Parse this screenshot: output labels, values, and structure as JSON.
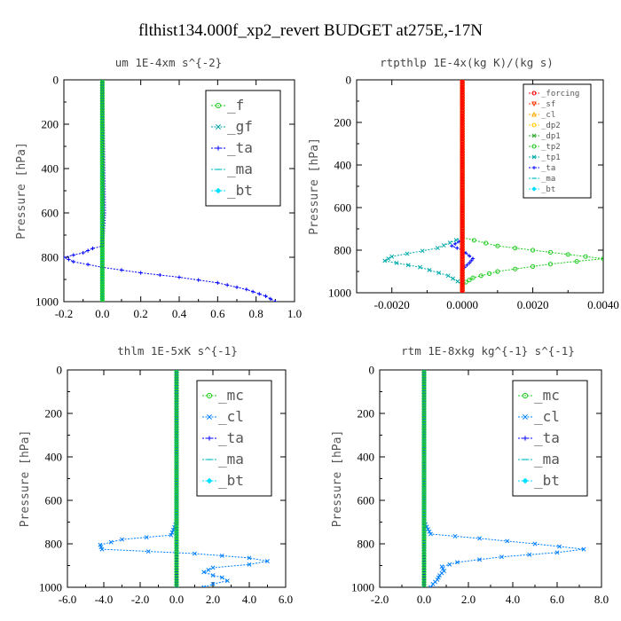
{
  "title": "flthist134.000f_xp2_revert  BUDGET at275E,-17N",
  "chart_data": [
    {
      "type": "line",
      "title": "um   1E-4xm s^{-2}",
      "xlabel": "",
      "ylabel": "Pressure [hPa]",
      "xlim": [
        -0.2,
        1.0
      ],
      "ylim": [
        1000,
        0
      ],
      "xticks": [
        -0.2,
        0.0,
        0.2,
        0.4,
        0.6,
        0.8,
        1.0
      ],
      "xtick_labels": [
        "-0.2",
        "0.0",
        "0.2",
        "0.4",
        "0.6",
        "0.8",
        "1.0"
      ],
      "yticks": [
        0,
        200,
        400,
        600,
        800,
        1000
      ],
      "ytick_labels": [
        "0",
        "200",
        "400",
        "600",
        "800",
        "1000"
      ],
      "legend": {
        "placement": "top-right",
        "size": "large"
      },
      "series": [
        {
          "name": "_f",
          "color": "#22cc22",
          "marker": "circle",
          "points": [
            [
              0,
              0
            ],
            [
              0,
              250
            ],
            [
              0,
              500
            ],
            [
              0,
              750
            ],
            [
              0,
              1000
            ]
          ]
        },
        {
          "name": "_gf",
          "color": "#00a0a0",
          "marker": "x",
          "points": [
            [
              0,
              0
            ],
            [
              0,
              250
            ],
            [
              0,
              500
            ],
            [
              0,
              750
            ],
            [
              0,
              1000
            ]
          ]
        },
        {
          "name": "_ta",
          "color": "#0000ff",
          "marker": "plus",
          "points": [
            [
              0,
              0
            ],
            [
              0.005,
              300
            ],
            [
              0.01,
              600
            ],
            [
              0,
              750
            ],
            [
              -0.05,
              760
            ],
            [
              -0.1,
              780
            ],
            [
              -0.2,
              800
            ],
            [
              -0.15,
              820
            ],
            [
              0,
              845
            ],
            [
              0.2,
              870
            ],
            [
              0.4,
              890
            ],
            [
              0.6,
              915
            ],
            [
              0.75,
              945
            ],
            [
              0.85,
              975
            ],
            [
              0.9,
              1000
            ]
          ]
        },
        {
          "name": "_ma",
          "color": "#00bfbf",
          "marker": "dash",
          "points": [
            [
              0,
              0
            ],
            [
              0,
              1000
            ]
          ]
        },
        {
          "name": "_bt",
          "color": "#00e0ff",
          "marker": "diamond",
          "points": [
            [
              0,
              0
            ],
            [
              0,
              1000
            ]
          ]
        }
      ]
    },
    {
      "type": "line",
      "title": "rtpthlp   1E-4x(kg K)/(kg s)",
      "xlabel": "",
      "ylabel": "Pressure [hPa]",
      "xlim": [
        -0.003,
        0.004
      ],
      "ylim": [
        1000,
        0
      ],
      "xticks": [
        -0.002,
        0.0,
        0.002,
        0.004
      ],
      "xtick_labels": [
        "-0.0020",
        "0.0000",
        "0.0020",
        "0.0040"
      ],
      "yticks": [
        0,
        200,
        400,
        600,
        800,
        1000
      ],
      "ytick_labels": [
        "0",
        "200",
        "400",
        "600",
        "800",
        "1000"
      ],
      "legend": {
        "placement": "top-right",
        "size": "small"
      },
      "series": [
        {
          "name": "_forcing",
          "color": "#ff0000",
          "marker": "circle",
          "points": [
            [
              0,
              0
            ],
            [
              0,
              1000
            ]
          ]
        },
        {
          "name": "_sf",
          "color": "#ff3300",
          "marker": "triangle-down",
          "points": [
            [
              0,
              0
            ],
            [
              0,
              1000
            ]
          ]
        },
        {
          "name": "_cl",
          "color": "#ffaa00",
          "marker": "triangle",
          "points": [
            [
              0,
              0
            ],
            [
              0,
              1000
            ]
          ]
        },
        {
          "name": "_dp2",
          "color": "#ffcc00",
          "marker": "circle",
          "points": [
            [
              0,
              0
            ],
            [
              0,
              1000
            ]
          ]
        },
        {
          "name": "_dp1",
          "color": "#33aa33",
          "marker": "x",
          "points": [
            [
              0,
              0
            ],
            [
              0,
              1000
            ]
          ]
        },
        {
          "name": "_tp2",
          "color": "#22cc22",
          "marker": "circle",
          "points": [
            [
              0,
              0
            ],
            [
              0,
              740
            ],
            [
              0.001,
              780
            ],
            [
              0.0025,
              810
            ],
            [
              0.004,
              840
            ],
            [
              0.0025,
              865
            ],
            [
              0.001,
              900
            ],
            [
              0.0003,
              930
            ],
            [
              0,
              960
            ],
            [
              0,
              1000
            ]
          ]
        },
        {
          "name": "_tp1",
          "color": "#00aaaa",
          "marker": "x",
          "points": [
            [
              0,
              0
            ],
            [
              0,
              740
            ],
            [
              -0.0007,
              790
            ],
            [
              -0.002,
              830
            ],
            [
              -0.0022,
              850
            ],
            [
              -0.0012,
              880
            ],
            [
              -0.0004,
              920
            ],
            [
              0,
              960
            ],
            [
              0,
              1000
            ]
          ]
        },
        {
          "name": "_ta",
          "color": "#0000ff",
          "marker": "plus",
          "points": [
            [
              0,
              0
            ],
            [
              0,
              750
            ],
            [
              -0.0003,
              780
            ],
            [
              0,
              800
            ],
            [
              0.0003,
              840
            ],
            [
              0.0002,
              860
            ],
            [
              0,
              890
            ],
            [
              0,
              1000
            ]
          ]
        },
        {
          "name": "_ma",
          "color": "#00bfbf",
          "marker": "dash",
          "points": [
            [
              0,
              0
            ],
            [
              0,
              1000
            ]
          ]
        },
        {
          "name": "_bt",
          "color": "#00e0ff",
          "marker": "diamond",
          "points": [
            [
              0,
              0
            ],
            [
              0,
              1000
            ]
          ]
        }
      ]
    },
    {
      "type": "line",
      "title": "thlm   1E-5xK s^{-1}",
      "xlabel": "",
      "ylabel": "Pressure [hPa]",
      "xlim": [
        -6.0,
        6.0
      ],
      "ylim": [
        1000,
        0
      ],
      "xticks": [
        -6.0,
        -4.0,
        -2.0,
        0.0,
        2.0,
        4.0,
        6.0
      ],
      "xtick_labels": [
        "-6.0",
        "-4.0",
        "-2.0",
        "0.0",
        "2.0",
        "4.0",
        "6.0"
      ],
      "yticks": [
        0,
        200,
        400,
        600,
        800,
        1000
      ],
      "ytick_labels": [
        "0",
        "200",
        "400",
        "600",
        "800",
        "1000"
      ],
      "legend": {
        "placement": "top-right",
        "size": "large"
      },
      "series": [
        {
          "name": "_mc",
          "color": "#22cc22",
          "marker": "circle",
          "points": [
            [
              0,
              0
            ],
            [
              0,
              250
            ],
            [
              0,
              500
            ],
            [
              0,
              750
            ],
            [
              0,
              1000
            ]
          ]
        },
        {
          "name": "_cl",
          "color": "#0080ff",
          "marker": "x",
          "points": [
            [
              0,
              0
            ],
            [
              0,
              700
            ],
            [
              -0.3,
              760
            ],
            [
              -3.0,
              780
            ],
            [
              -4.2,
              805
            ],
            [
              -4.1,
              825
            ],
            [
              1.0,
              845
            ],
            [
              4.0,
              865
            ],
            [
              5.0,
              880
            ],
            [
              4.0,
              895
            ],
            [
              2.0,
              910
            ],
            [
              1.5,
              930
            ],
            [
              2.0,
              945
            ],
            [
              2.5,
              955
            ],
            [
              2.8,
              970
            ],
            [
              2.0,
              985
            ],
            [
              1.5,
              1000
            ]
          ]
        },
        {
          "name": "_ta",
          "color": "#0000ff",
          "marker": "plus",
          "points": [
            [
              0,
              0
            ],
            [
              0,
              1000
            ]
          ]
        },
        {
          "name": "_ma",
          "color": "#00bfbf",
          "marker": "dash",
          "points": [
            [
              0,
              0
            ],
            [
              0,
              1000
            ]
          ]
        },
        {
          "name": "_bt",
          "color": "#00e0ff",
          "marker": "diamond",
          "points": [
            [
              0,
              0
            ],
            [
              0,
              1000
            ]
          ]
        }
      ]
    },
    {
      "type": "line",
      "title": "rtm   1E-8xkg kg^{-1} s^{-1}",
      "xlabel": "",
      "ylabel": "Pressure [hPa]",
      "xlim": [
        -2.0,
        8.0
      ],
      "ylim": [
        1000,
        0
      ],
      "xticks": [
        -2.0,
        0.0,
        2.0,
        4.0,
        6.0,
        8.0
      ],
      "xtick_labels": [
        "-2.0",
        "0.0",
        "2.0",
        "4.0",
        "6.0",
        "8.0"
      ],
      "yticks": [
        0,
        200,
        400,
        600,
        800,
        1000
      ],
      "ytick_labels": [
        "0",
        "200",
        "400",
        "600",
        "800",
        "1000"
      ],
      "legend": {
        "placement": "top-right",
        "size": "large"
      },
      "series": [
        {
          "name": "_mc",
          "color": "#22cc22",
          "marker": "circle",
          "points": [
            [
              0,
              0
            ],
            [
              0,
              250
            ],
            [
              0,
              500
            ],
            [
              0,
              750
            ],
            [
              0,
              1000
            ]
          ]
        },
        {
          "name": "_cl",
          "color": "#0080ff",
          "marker": "x",
          "points": [
            [
              0,
              0
            ],
            [
              0,
              700
            ],
            [
              0.3,
              755
            ],
            [
              2.5,
              775
            ],
            [
              5.0,
              800
            ],
            [
              7.2,
              825
            ],
            [
              6.0,
              840
            ],
            [
              3.5,
              860
            ],
            [
              1.5,
              885
            ],
            [
              0.8,
              905
            ],
            [
              0.9,
              925
            ],
            [
              0.7,
              945
            ],
            [
              0.6,
              965
            ],
            [
              0.4,
              985
            ],
            [
              0.3,
              1000
            ]
          ]
        },
        {
          "name": "_ta",
          "color": "#0000ff",
          "marker": "plus",
          "points": [
            [
              0,
              0
            ],
            [
              0,
              1000
            ]
          ]
        },
        {
          "name": "_ma",
          "color": "#00bfbf",
          "marker": "dash",
          "points": [
            [
              0,
              0
            ],
            [
              0,
              1000
            ]
          ]
        },
        {
          "name": "_bt",
          "color": "#00e0ff",
          "marker": "diamond",
          "points": [
            [
              0,
              0
            ],
            [
              0,
              1000
            ]
          ]
        }
      ]
    }
  ]
}
